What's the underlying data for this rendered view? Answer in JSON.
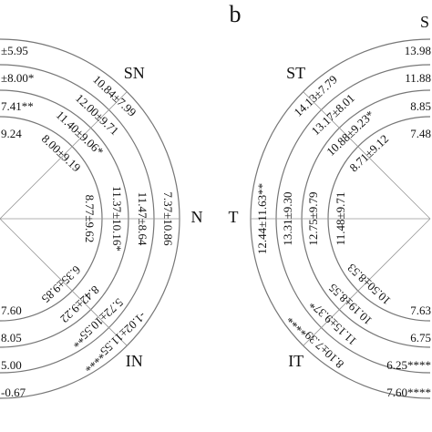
{
  "panels": [
    {
      "sectors": [
        {
          "label": "SN",
          "values": [
            "10.84±7.99",
            "12.00±9.71",
            "11.40±9.06*",
            "8.00±9.19"
          ]
        },
        {
          "label": "N",
          "values": [
            "7.37±10.86",
            "11.47±8.64",
            "11.37±10.16*",
            "8.77±9.62"
          ]
        },
        {
          "label": "IN",
          "values": [
            "-1.02±11.55****",
            "5.72±10.55**",
            "8.42±9.22",
            "6.35±9.85"
          ]
        }
      ],
      "top_edge_texts": [
        "±5.95",
        "±8.00*",
        "7.41**",
        "9.24"
      ],
      "bottom_edge_texts": [
        "7.60",
        "8.05",
        "5.00",
        "-0.67"
      ]
    },
    {
      "letter": "b",
      "sectors": [
        {
          "label": "ST",
          "values": [
            "14.13±7.79",
            "13.17±8.01",
            "10.88±9.23*",
            "8.71±9.12"
          ]
        },
        {
          "label": "T",
          "values": [
            "12.44±11.63**",
            "13.31±9.30",
            "12.75±9.79",
            "11.48±9.71"
          ]
        },
        {
          "label": "IT",
          "values": [
            "8.10±7.39****",
            "11.15±9.37*",
            "10.19±8.55",
            "10.50±8.53"
          ]
        }
      ],
      "corner_label": "S",
      "top_edge_texts": [
        "13.98",
        "11.88",
        "8.85",
        "7.48"
      ],
      "bottom_edge_texts": [
        "7.63",
        "6.75",
        "6.25****",
        "7.60****"
      ]
    }
  ]
}
